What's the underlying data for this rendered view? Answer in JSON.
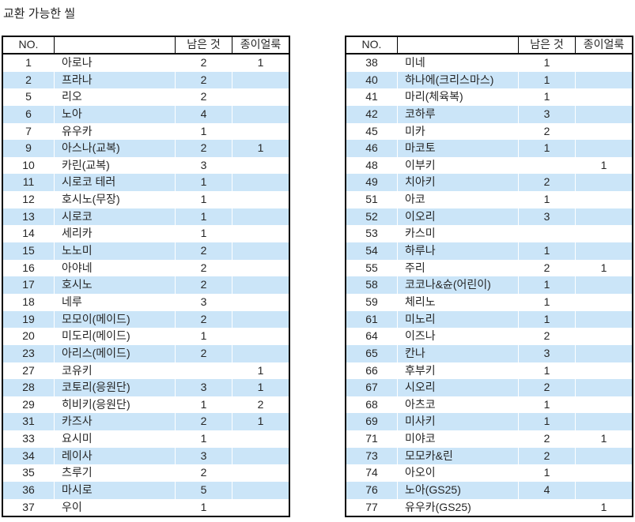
{
  "title": "교환 가능한 씰",
  "columns": {
    "no": "NO.",
    "name": "",
    "remaining": "남은 것",
    "stain": "종이얼룩"
  },
  "colors": {
    "highlight": "#cbe5f8",
    "border": "#000000",
    "text": "#262626"
  },
  "tables": [
    {
      "id": "left",
      "rows": [
        {
          "no": "1",
          "name": "아로나",
          "remaining": "2",
          "stain": "1"
        },
        {
          "no": "2",
          "name": "프라나",
          "remaining": "2",
          "stain": ""
        },
        {
          "no": "5",
          "name": "리오",
          "remaining": "2",
          "stain": ""
        },
        {
          "no": "6",
          "name": "노아",
          "remaining": "4",
          "stain": ""
        },
        {
          "no": "7",
          "name": "유우카",
          "remaining": "1",
          "stain": ""
        },
        {
          "no": "9",
          "name": "아스나(교복)",
          "remaining": "2",
          "stain": "1"
        },
        {
          "no": "10",
          "name": "카린(교복)",
          "remaining": "3",
          "stain": ""
        },
        {
          "no": "11",
          "name": "시로코 테러",
          "remaining": "1",
          "stain": ""
        },
        {
          "no": "12",
          "name": "호시노(무장)",
          "remaining": "1",
          "stain": ""
        },
        {
          "no": "13",
          "name": "시로코",
          "remaining": "1",
          "stain": ""
        },
        {
          "no": "14",
          "name": "세리카",
          "remaining": "1",
          "stain": ""
        },
        {
          "no": "15",
          "name": "노노미",
          "remaining": "2",
          "stain": ""
        },
        {
          "no": "16",
          "name": "아야네",
          "remaining": "2",
          "stain": ""
        },
        {
          "no": "17",
          "name": "호시노",
          "remaining": "2",
          "stain": ""
        },
        {
          "no": "18",
          "name": "네루",
          "remaining": "3",
          "stain": ""
        },
        {
          "no": "19",
          "name": "모모이(메이드)",
          "remaining": "2",
          "stain": ""
        },
        {
          "no": "20",
          "name": "미도리(메이드)",
          "remaining": "1",
          "stain": ""
        },
        {
          "no": "23",
          "name": "아리스(메이드)",
          "remaining": "2",
          "stain": ""
        },
        {
          "no": "27",
          "name": "코유키",
          "remaining": "",
          "stain": "1"
        },
        {
          "no": "28",
          "name": "코토리(응원단)",
          "remaining": "3",
          "stain": "1"
        },
        {
          "no": "29",
          "name": "히비키(응원단)",
          "remaining": "1",
          "stain": "2"
        },
        {
          "no": "31",
          "name": "카즈사",
          "remaining": "2",
          "stain": "1"
        },
        {
          "no": "33",
          "name": "요시미",
          "remaining": "1",
          "stain": ""
        },
        {
          "no": "34",
          "name": "레이사",
          "remaining": "3",
          "stain": ""
        },
        {
          "no": "35",
          "name": "츠루기",
          "remaining": "2",
          "stain": ""
        },
        {
          "no": "36",
          "name": "마시로",
          "remaining": "5",
          "stain": ""
        },
        {
          "no": "37",
          "name": "우이",
          "remaining": "1",
          "stain": ""
        }
      ]
    },
    {
      "id": "right",
      "rows": [
        {
          "no": "38",
          "name": "미네",
          "remaining": "1",
          "stain": ""
        },
        {
          "no": "40",
          "name": "하나에(크리스마스)",
          "remaining": "1",
          "stain": ""
        },
        {
          "no": "41",
          "name": "마리(체육복)",
          "remaining": "1",
          "stain": ""
        },
        {
          "no": "42",
          "name": "코하루",
          "remaining": "3",
          "stain": ""
        },
        {
          "no": "45",
          "name": "미카",
          "remaining": "2",
          "stain": ""
        },
        {
          "no": "46",
          "name": "마코토",
          "remaining": "1",
          "stain": ""
        },
        {
          "no": "48",
          "name": "이부키",
          "remaining": "",
          "stain": "1"
        },
        {
          "no": "49",
          "name": "치아키",
          "remaining": "2",
          "stain": ""
        },
        {
          "no": "51",
          "name": "아코",
          "remaining": "1",
          "stain": ""
        },
        {
          "no": "52",
          "name": "이오리",
          "remaining": "3",
          "stain": ""
        },
        {
          "no": "53",
          "name": "카스미",
          "remaining": "",
          "stain": ""
        },
        {
          "no": "54",
          "name": "하루나",
          "remaining": "1",
          "stain": ""
        },
        {
          "no": "55",
          "name": "주리",
          "remaining": "2",
          "stain": "1"
        },
        {
          "no": "58",
          "name": "코코나&슌(어린이)",
          "remaining": "1",
          "stain": ""
        },
        {
          "no": "59",
          "name": "체리노",
          "remaining": "1",
          "stain": ""
        },
        {
          "no": "61",
          "name": "미노리",
          "remaining": "1",
          "stain": ""
        },
        {
          "no": "64",
          "name": "이즈나",
          "remaining": "2",
          "stain": ""
        },
        {
          "no": "65",
          "name": "칸나",
          "remaining": "3",
          "stain": ""
        },
        {
          "no": "66",
          "name": "후부키",
          "remaining": "1",
          "stain": ""
        },
        {
          "no": "67",
          "name": "시오리",
          "remaining": "2",
          "stain": ""
        },
        {
          "no": "68",
          "name": "아츠코",
          "remaining": "1",
          "stain": ""
        },
        {
          "no": "69",
          "name": "미사키",
          "remaining": "1",
          "stain": ""
        },
        {
          "no": "71",
          "name": "미야코",
          "remaining": "2",
          "stain": "1"
        },
        {
          "no": "73",
          "name": "모모카&린",
          "remaining": "2",
          "stain": ""
        },
        {
          "no": "74",
          "name": "아오이",
          "remaining": "1",
          "stain": ""
        },
        {
          "no": "76",
          "name": "노아(GS25)",
          "remaining": "4",
          "stain": ""
        },
        {
          "no": "77",
          "name": "유우카(GS25)",
          "remaining": "",
          "stain": "1"
        }
      ]
    }
  ]
}
